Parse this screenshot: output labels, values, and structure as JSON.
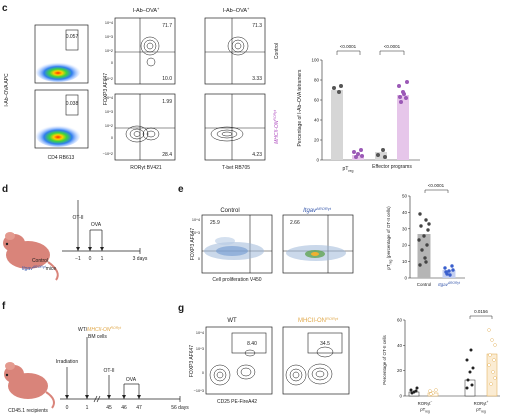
{
  "panels": {
    "c": "c",
    "d": "d",
    "e": "e",
    "f": "f",
    "g": "g"
  },
  "c": {
    "title_ova": "I-Ab–OVA",
    "title_ova_sup": "+",
    "y_axis_1": "I-Ab–OVA APC",
    "x_axis_1": "CD4 RB613",
    "y_axis_2": "FOXP3 AF647",
    "x_axis_2": "RORγt BV421",
    "x_axis_3": "T-bet RB705",
    "gate_control": "0.057",
    "gate_mhc": "0.038",
    "q_ctrl_ror_ul": "71.7",
    "q_ctrl_ror_lr": "10.0",
    "q_ctrl_tbet_ul": "71.3",
    "q_ctrl_tbet_lr": "3.33",
    "q_mhc_ror_ul": "1.99",
    "q_mhc_ror_lr": "28.4",
    "q_mhc_tbet_lr": "4.23",
    "row_control": "Control",
    "row_mhc": "MHCII-ON",
    "row_mhc_sup": "RORγt",
    "ticks": [
      "10^4",
      "10^3",
      "10^2",
      "0",
      "−10^2"
    ]
  },
  "c_bar": {
    "ylabel": "Percentage of I-Ab–OVA tetramers",
    "yticks": [
      "100",
      "80",
      "60",
      "40",
      "20",
      "0"
    ],
    "pval1": "<0.0001",
    "pval2": "<0.0001",
    "cat1": "pT",
    "cat1_sub": "reg",
    "cat2": "Effector programs"
  },
  "d": {
    "ot": "OT-II",
    "ova": "OVA",
    "ticks": [
      "−1",
      "0",
      "1",
      "3 days"
    ],
    "control": "Control",
    "itgav": "Itgav",
    "itgav_sup": "ΔRORγt",
    "mice": "mice"
  },
  "e": {
    "control": "Control",
    "itgav": "Itgav",
    "itgav_sup": "ΔRORγt",
    "q1": "25.9",
    "q2": "2.66",
    "ylabel": "FOXP3 AF647",
    "xlabel": "Cell proliferation V450",
    "ticks": [
      "10^4",
      "10^3",
      "0"
    ],
    "pval": "<0.0001",
    "bar_ylabel": "pT",
    "bar_ylabel_sub": "reg",
    "bar_ylabel_rest": " (percentage of OT-II cells)",
    "yticks": [
      "50",
      "40",
      "30",
      "20",
      "10",
      "0"
    ],
    "cat1": "Control",
    "cat2": "Itgav",
    "cat2_sup": "ΔRORγt"
  },
  "f": {
    "recipients": "CD45.1 recipients",
    "irradiation": "Irradiation",
    "wt": "WT/",
    "mhc": "MHCII-ON",
    "mhc_sup": "RORγt",
    "bm": "BM cells",
    "ot": "OT-II",
    "ova": "OVA",
    "ticks": [
      "0",
      "1",
      "45",
      "46",
      "47",
      "56 days"
    ]
  },
  "g": {
    "wt": "WT",
    "mhc": "MHCII-ON",
    "mhc_sup": "RORγt",
    "q1": "8.40",
    "q2": "34.5",
    "ylabel": "FOXP3 AF647",
    "xlabel": "CD25 PE-FireA42",
    "ticks": [
      "10^4",
      "10^3",
      "0",
      "−10^3"
    ],
    "pval": "0.0156",
    "bar_ylabel": "Percentage of OT-II cells",
    "yticks": [
      "60",
      "40",
      "20",
      "0"
    ],
    "cat1": "RORγt",
    "cat1_sup": "−",
    "cat1_b": "pT",
    "cat1_sub": "reg",
    "cat2": "RORγt",
    "cat2_sup": "+",
    "cat2_b": "pT",
    "cat2_sub": "reg"
  },
  "colors": {
    "control": "#555555",
    "mhc": "#b04fc0",
    "purple": "#9b59b6",
    "gold": "#e0a84a",
    "blue": "#3a5fcd",
    "italic_blue": "#3355aa"
  }
}
